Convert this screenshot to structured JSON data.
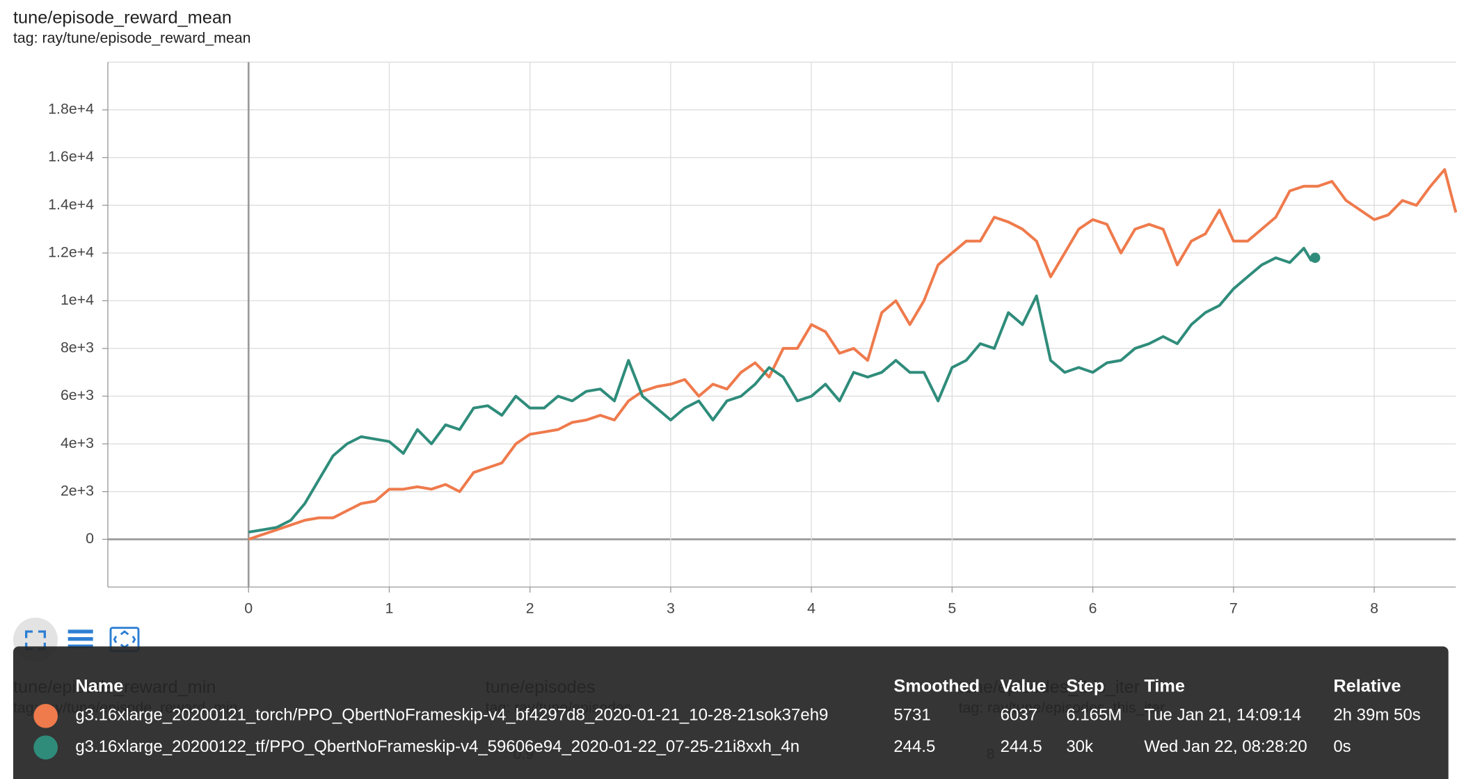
{
  "header": {
    "title": "tune/episode_reward_mean",
    "tag": "tag: ray/tune/episode_reward_mean"
  },
  "chart_data": {
    "type": "line",
    "xlim": [
      -1,
      8.58
    ],
    "xticks": [
      0,
      1,
      2,
      3,
      4,
      5,
      6,
      7,
      8
    ],
    "ylim": [
      -2000,
      20000
    ],
    "yticks": [
      0,
      {
        "value": 2000,
        "label": "2e+3"
      },
      {
        "value": 4000,
        "label": "4e+3"
      },
      {
        "value": 6000,
        "label": "6e+3"
      },
      {
        "value": 8000,
        "label": "8e+3"
      },
      {
        "value": 10000,
        "label": "1e+4"
      },
      {
        "value": 12000,
        "label": "1.2e+4"
      },
      {
        "value": 14000,
        "label": "1.4e+4"
      },
      {
        "value": 16000,
        "label": "1.6e+4"
      },
      {
        "value": 18000,
        "label": "1.8e+4"
      }
    ],
    "grid": true,
    "series": [
      {
        "name": "g3.16xlarge_20200121_torch/PPO_QbertNoFrameskip-v4_bf4297d8_2020-01-21_10-28-21sok37eh9",
        "color": "#ef7a4c",
        "x": [
          0,
          0.1,
          0.2,
          0.3,
          0.4,
          0.5,
          0.6,
          0.7,
          0.8,
          0.9,
          1.0,
          1.1,
          1.2,
          1.3,
          1.4,
          1.5,
          1.6,
          1.7,
          1.8,
          1.9,
          2.0,
          2.1,
          2.2,
          2.3,
          2.4,
          2.5,
          2.6,
          2.7,
          2.8,
          2.9,
          3.0,
          3.1,
          3.2,
          3.3,
          3.4,
          3.5,
          3.6,
          3.7,
          3.8,
          3.9,
          4.0,
          4.1,
          4.2,
          4.3,
          4.4,
          4.5,
          4.6,
          4.7,
          4.8,
          4.9,
          5.0,
          5.1,
          5.2,
          5.3,
          5.4,
          5.5,
          5.6,
          5.7,
          5.8,
          5.9,
          6.0,
          6.1,
          6.2,
          6.3,
          6.4,
          6.5,
          6.6,
          6.7,
          6.8,
          6.9,
          7.0,
          7.1,
          7.2,
          7.3,
          7.4,
          7.5,
          7.6,
          7.7,
          7.8,
          7.9,
          8.0,
          8.1,
          8.2,
          8.3,
          8.4,
          8.5,
          8.58
        ],
        "values": [
          0,
          200,
          400,
          600,
          800,
          900,
          900,
          1200,
          1500,
          1600,
          2100,
          2100,
          2200,
          2100,
          2300,
          2000,
          2800,
          3000,
          3200,
          4000,
          4400,
          4500,
          4600,
          4900,
          5000,
          5200,
          5000,
          5800,
          6200,
          6400,
          6500,
          6700,
          6000,
          6500,
          6300,
          7000,
          7400,
          6800,
          8000,
          8000,
          9000,
          8700,
          7800,
          8000,
          7500,
          9500,
          10000,
          9000,
          10000,
          11500,
          12000,
          12500,
          12500,
          13500,
          13300,
          13000,
          12500,
          11000,
          12000,
          13000,
          13400,
          13200,
          12000,
          13000,
          13200,
          13000,
          11500,
          12500,
          12800,
          13800,
          12500,
          12500,
          13000,
          13500,
          14600,
          14800,
          14800,
          15000,
          14200,
          13800,
          13400,
          13600,
          14200,
          14000,
          14800,
          15500,
          13700
        ]
      },
      {
        "name": "g3.16xlarge_20200122_tf/PPO_QbertNoFrameskip-v4_59606e94_2020-01-22_07-25-21i8xxh_4n",
        "color": "#2f8c7b",
        "x": [
          0,
          0.1,
          0.2,
          0.3,
          0.4,
          0.5,
          0.6,
          0.7,
          0.8,
          0.9,
          1.0,
          1.1,
          1.2,
          1.3,
          1.4,
          1.5,
          1.6,
          1.7,
          1.8,
          1.9,
          2.0,
          2.1,
          2.2,
          2.3,
          2.4,
          2.5,
          2.6,
          2.7,
          2.8,
          2.9,
          3.0,
          3.1,
          3.2,
          3.3,
          3.4,
          3.5,
          3.6,
          3.7,
          3.8,
          3.9,
          4.0,
          4.1,
          4.2,
          4.3,
          4.4,
          4.5,
          4.6,
          4.7,
          4.8,
          4.9,
          5.0,
          5.1,
          5.2,
          5.3,
          5.4,
          5.5,
          5.6,
          5.7,
          5.8,
          5.9,
          6.0,
          6.1,
          6.2,
          6.3,
          6.4,
          6.5,
          6.6,
          6.7,
          6.8,
          6.9,
          7.0,
          7.1,
          7.2,
          7.3,
          7.4,
          7.5,
          7.55,
          7.58
        ],
        "values": [
          300,
          400,
          500,
          800,
          1500,
          2500,
          3500,
          4000,
          4300,
          4200,
          4100,
          3600,
          4600,
          4000,
          4800,
          4600,
          5500,
          5600,
          5200,
          6000,
          5500,
          5500,
          6000,
          5800,
          6200,
          6300,
          5800,
          7500,
          6000,
          5500,
          5000,
          5500,
          5800,
          5000,
          5800,
          6000,
          6500,
          7200,
          6800,
          5800,
          6000,
          6500,
          5800,
          7000,
          6800,
          7000,
          7500,
          7000,
          7000,
          5800,
          7200,
          7500,
          8200,
          8000,
          9500,
          9000,
          10200,
          7500,
          7000,
          7200,
          7000,
          7400,
          7500,
          8000,
          8200,
          8500,
          8200,
          9000,
          9500,
          9800,
          10500,
          11000,
          11500,
          11800,
          11600,
          12200,
          11700,
          11800
        ]
      }
    ]
  },
  "tooltip": {
    "columns": [
      "Name",
      "Smoothed",
      "Value",
      "Step",
      "Time",
      "Relative"
    ],
    "rows": [
      [
        "g3.16xlarge_20200121_torch/PPO_QbertNoFrameskip-v4_bf4297d8_2020-01-21_10-28-21sok37eh9",
        "5731",
        "6037",
        "6.165M",
        "Tue Jan 21, 14:09:14",
        "2h 39m 50s"
      ],
      [
        "g3.16xlarge_20200122_tf/PPO_QbertNoFrameskip-v4_59606e94_2020-01-22_07-25-21i8xxh_4n",
        "244.5",
        "244.5",
        "30k",
        "Wed Jan 22, 08:28:20",
        "0s"
      ]
    ]
  },
  "background_cards": [
    {
      "title": "tune/episode_reward_min",
      "tag": "tag: ray/tune/episode_reward_min"
    },
    {
      "title": "tune/episodes",
      "tag": "tag: ray/tune/episodes",
      "tick": "0.9"
    },
    {
      "title": "tune/episodes_this_iter",
      "tag": "tag: ray/tune/episodes_this_iter",
      "tick": "8"
    }
  ]
}
